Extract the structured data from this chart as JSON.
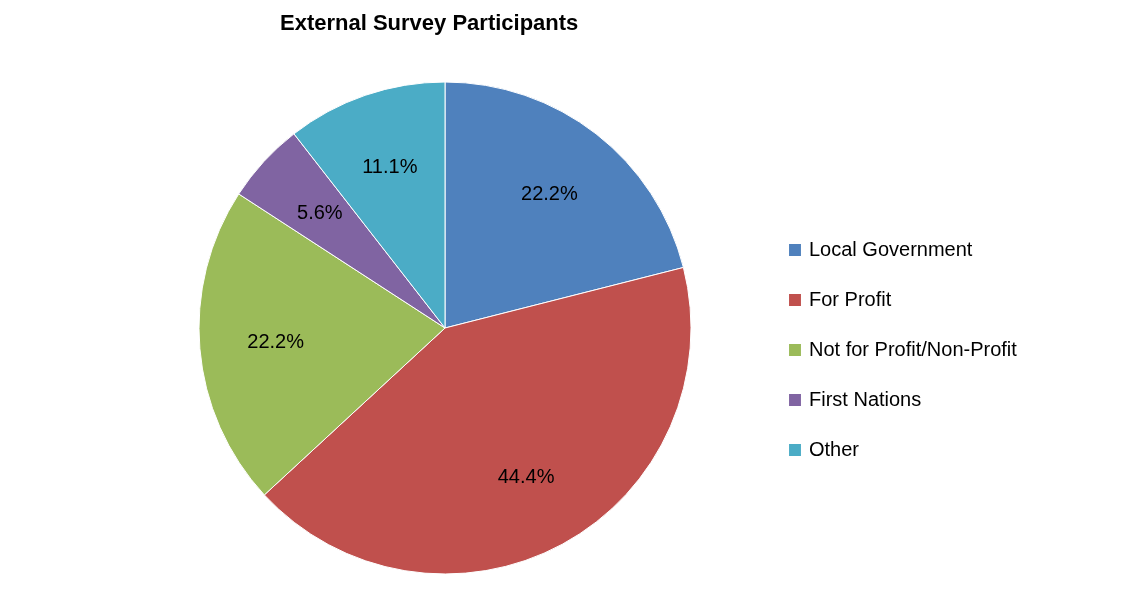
{
  "chart_data": {
    "type": "pie",
    "title": "External Survey Participants",
    "categories": [
      "Local Government",
      "For Profit",
      "Not for Profit/Non-Profit",
      "First Nations",
      "Other"
    ],
    "values": [
      22.2,
      44.4,
      22.2,
      5.6,
      11.1
    ],
    "value_labels": [
      "22.2%",
      "44.4%",
      "22.2%",
      "5.6%",
      "11.1%"
    ],
    "colors": [
      "#4f81bd",
      "#c0504d",
      "#9bbb59",
      "#8064a2",
      "#4bacc6"
    ],
    "legend": "right"
  }
}
